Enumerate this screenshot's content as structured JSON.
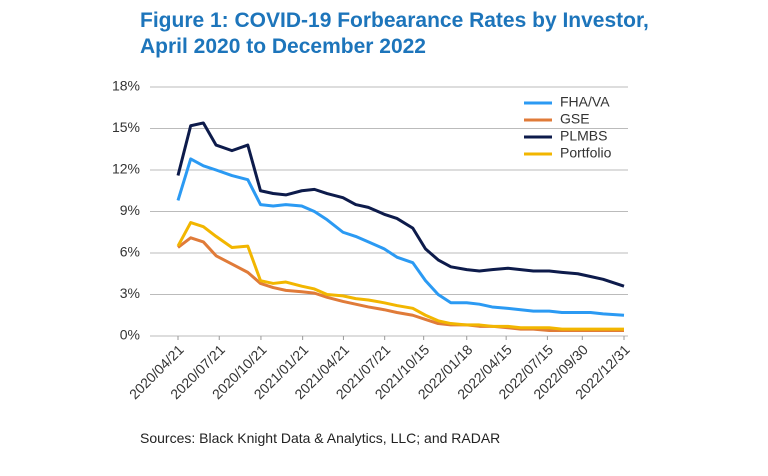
{
  "chart_data": {
    "type": "line",
    "title": "Figure 1: COVID-19 Forbearance Rates by Investor, April 2020 to December 2022",
    "source": "Sources: Black Knight Data & Analytics, LLC; and RADAR",
    "x": [
      "2020/04/21",
      "2020/05/19",
      "2020/06/16",
      "2020/07/14",
      "2020/08/18",
      "2020/09/22",
      "2020/10/20",
      "2020/11/17",
      "2020/12/15",
      "2021/01/19",
      "2021/02/16",
      "2021/03/16",
      "2021/04/20",
      "2021/05/18",
      "2021/06/15",
      "2021/07/20",
      "2021/08/17",
      "2021/09/21",
      "2021/10/19",
      "2021/11/16",
      "2021/12/14",
      "2022/01/18",
      "2022/02/15",
      "2022/03/15",
      "2022/04/19",
      "2022/05/17",
      "2022/06/14",
      "2022/07/19",
      "2022/08/16",
      "2022/09/20",
      "2022/10/18",
      "2022/11/15",
      "2022/12/31"
    ],
    "series": [
      {
        "name": "FHA/VA",
        "color": "#2b9af3",
        "values": [
          9.8,
          12.8,
          12.3,
          12.0,
          11.6,
          11.3,
          9.5,
          9.4,
          9.5,
          9.4,
          9.0,
          8.4,
          7.5,
          7.2,
          6.8,
          6.3,
          5.7,
          5.3,
          4.0,
          3.0,
          2.4,
          2.4,
          2.3,
          2.1,
          2.0,
          1.9,
          1.8,
          1.8,
          1.7,
          1.7,
          1.7,
          1.6,
          1.5
        ]
      },
      {
        "name": "GSE",
        "color": "#e07b39",
        "values": [
          6.4,
          7.1,
          6.8,
          5.8,
          5.2,
          4.6,
          3.8,
          3.5,
          3.3,
          3.2,
          3.1,
          2.8,
          2.5,
          2.3,
          2.1,
          1.9,
          1.7,
          1.5,
          1.2,
          0.9,
          0.8,
          0.8,
          0.7,
          0.7,
          0.6,
          0.5,
          0.5,
          0.4,
          0.4,
          0.4,
          0.4,
          0.4,
          0.4
        ]
      },
      {
        "name": "PLMBS",
        "color": "#0d1b4b",
        "values": [
          11.6,
          15.2,
          15.4,
          13.8,
          13.4,
          13.8,
          10.5,
          10.3,
          10.2,
          10.5,
          10.6,
          10.3,
          10.0,
          9.5,
          9.3,
          8.8,
          8.5,
          7.8,
          6.3,
          5.5,
          5.0,
          4.8,
          4.7,
          4.8,
          4.9,
          4.8,
          4.7,
          4.7,
          4.6,
          4.5,
          4.3,
          4.1,
          3.6
        ]
      },
      {
        "name": "Portfolio",
        "color": "#f2b600",
        "values": [
          6.5,
          8.2,
          7.9,
          7.2,
          6.4,
          6.5,
          4.0,
          3.8,
          3.9,
          3.6,
          3.4,
          3.0,
          2.9,
          2.7,
          2.6,
          2.4,
          2.2,
          2.0,
          1.5,
          1.1,
          0.9,
          0.8,
          0.8,
          0.7,
          0.7,
          0.6,
          0.6,
          0.6,
          0.5,
          0.5,
          0.5,
          0.5,
          0.5
        ]
      }
    ],
    "xlim": [
      "2020/04/21",
      "2022/12/31"
    ],
    "xticks": [
      "2020/04/21",
      "2020/07/21",
      "2020/10/21",
      "2021/01/21",
      "2021/04/21",
      "2021/07/21",
      "2021/10/15",
      "2022/01/18",
      "2022/04/15",
      "2022/07/15",
      "2022/09/30",
      "2022/12/31"
    ],
    "ylim": [
      0,
      18
    ],
    "yticks": [
      {
        "value": 0,
        "label": "0%"
      },
      {
        "value": 3,
        "label": "3%"
      },
      {
        "value": 6,
        "label": "6%"
      },
      {
        "value": 9,
        "label": "9%"
      },
      {
        "value": 12,
        "label": "12%"
      },
      {
        "value": 15,
        "label": "15%"
      },
      {
        "value": 18,
        "label": "18%"
      }
    ],
    "grid": true,
    "legend": "upper right"
  }
}
